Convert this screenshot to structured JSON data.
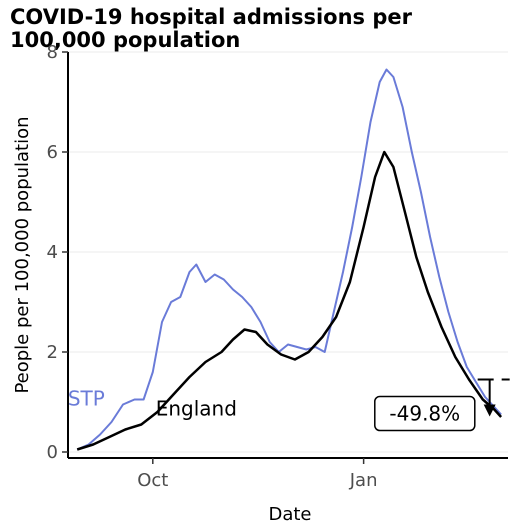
{
  "chart_data": {
    "type": "line",
    "title": "COVID-19 hospital admissions per 100,000 population",
    "xlabel": "Date",
    "ylabel": "People per 100,000 population",
    "ylim": [
      0,
      8
    ],
    "xlim": [
      "2020-08-25",
      "2021-03-05"
    ],
    "y_ticks": [
      "0",
      "2",
      "4",
      "6",
      "8"
    ],
    "x_ticks": [
      {
        "label": "Oct",
        "date": "2020-10-01"
      },
      {
        "label": "Jan",
        "date": "2021-01-01"
      }
    ],
    "gridlines": "horizontal",
    "legend": "direct labels",
    "series": [
      {
        "name": "STP",
        "color": "#6a7bd8",
        "points": [
          [
            "2020-08-29",
            0.05
          ],
          [
            "2020-09-03",
            0.15
          ],
          [
            "2020-09-08",
            0.35
          ],
          [
            "2020-09-13",
            0.6
          ],
          [
            "2020-09-18",
            0.95
          ],
          [
            "2020-09-23",
            1.05
          ],
          [
            "2020-09-27",
            1.05
          ],
          [
            "2020-10-01",
            1.6
          ],
          [
            "2020-10-05",
            2.6
          ],
          [
            "2020-10-09",
            3.0
          ],
          [
            "2020-10-13",
            3.1
          ],
          [
            "2020-10-17",
            3.6
          ],
          [
            "2020-10-20",
            3.75
          ],
          [
            "2020-10-24",
            3.4
          ],
          [
            "2020-10-28",
            3.55
          ],
          [
            "2020-11-01",
            3.45
          ],
          [
            "2020-11-05",
            3.25
          ],
          [
            "2020-11-09",
            3.1
          ],
          [
            "2020-11-13",
            2.9
          ],
          [
            "2020-11-17",
            2.6
          ],
          [
            "2020-11-21",
            2.2
          ],
          [
            "2020-11-25",
            2.0
          ],
          [
            "2020-11-29",
            2.15
          ],
          [
            "2020-12-03",
            2.1
          ],
          [
            "2020-12-07",
            2.05
          ],
          [
            "2020-12-11",
            2.1
          ],
          [
            "2020-12-15",
            2.0
          ],
          [
            "2020-12-19",
            2.8
          ],
          [
            "2020-12-23",
            3.6
          ],
          [
            "2020-12-27",
            4.5
          ],
          [
            "2020-12-31",
            5.5
          ],
          [
            "2021-01-04",
            6.6
          ],
          [
            "2021-01-08",
            7.4
          ],
          [
            "2021-01-11",
            7.65
          ],
          [
            "2021-01-14",
            7.5
          ],
          [
            "2021-01-18",
            6.9
          ],
          [
            "2021-01-22",
            6.0
          ],
          [
            "2021-01-26",
            5.2
          ],
          [
            "2021-01-30",
            4.3
          ],
          [
            "2021-02-03",
            3.5
          ],
          [
            "2021-02-07",
            2.8
          ],
          [
            "2021-02-11",
            2.2
          ],
          [
            "2021-02-15",
            1.7
          ],
          [
            "2021-02-19",
            1.4
          ],
          [
            "2021-02-23",
            1.1
          ],
          [
            "2021-02-27",
            0.9
          ],
          [
            "2021-03-02",
            0.75
          ]
        ]
      },
      {
        "name": "England",
        "color": "#000000",
        "points": [
          [
            "2020-08-29",
            0.05
          ],
          [
            "2020-09-05",
            0.15
          ],
          [
            "2020-09-12",
            0.3
          ],
          [
            "2020-09-19",
            0.45
          ],
          [
            "2020-09-26",
            0.55
          ],
          [
            "2020-10-03",
            0.8
          ],
          [
            "2020-10-10",
            1.15
          ],
          [
            "2020-10-17",
            1.5
          ],
          [
            "2020-10-24",
            1.8
          ],
          [
            "2020-10-31",
            2.0
          ],
          [
            "2020-11-05",
            2.25
          ],
          [
            "2020-11-10",
            2.45
          ],
          [
            "2020-11-15",
            2.4
          ],
          [
            "2020-11-20",
            2.15
          ],
          [
            "2020-11-26",
            1.95
          ],
          [
            "2020-12-02",
            1.85
          ],
          [
            "2020-12-08",
            2.0
          ],
          [
            "2020-12-14",
            2.3
          ],
          [
            "2020-12-20",
            2.7
          ],
          [
            "2020-12-26",
            3.4
          ],
          [
            "2021-01-01",
            4.5
          ],
          [
            "2021-01-06",
            5.5
          ],
          [
            "2021-01-10",
            6.0
          ],
          [
            "2021-01-14",
            5.7
          ],
          [
            "2021-01-19",
            4.8
          ],
          [
            "2021-01-24",
            3.9
          ],
          [
            "2021-01-29",
            3.2
          ],
          [
            "2021-02-04",
            2.5
          ],
          [
            "2021-02-10",
            1.9
          ],
          [
            "2021-02-16",
            1.45
          ],
          [
            "2021-02-22",
            1.05
          ],
          [
            "2021-02-27",
            0.85
          ],
          [
            "2021-03-02",
            0.7
          ]
        ]
      }
    ],
    "series_labels": [
      {
        "series": "STP",
        "text": "STP",
        "date": "2020-09-02",
        "y": 1.05
      },
      {
        "series": "England",
        "text": "England",
        "date": "2020-10-20",
        "y": 0.85
      }
    ],
    "annotation": {
      "text": "-49.8%",
      "date": "2021-02-22",
      "y": 0.75,
      "arrow_from": 1.45,
      "arrow_to": 0.75,
      "arrow_at": "2021-02-25"
    }
  }
}
